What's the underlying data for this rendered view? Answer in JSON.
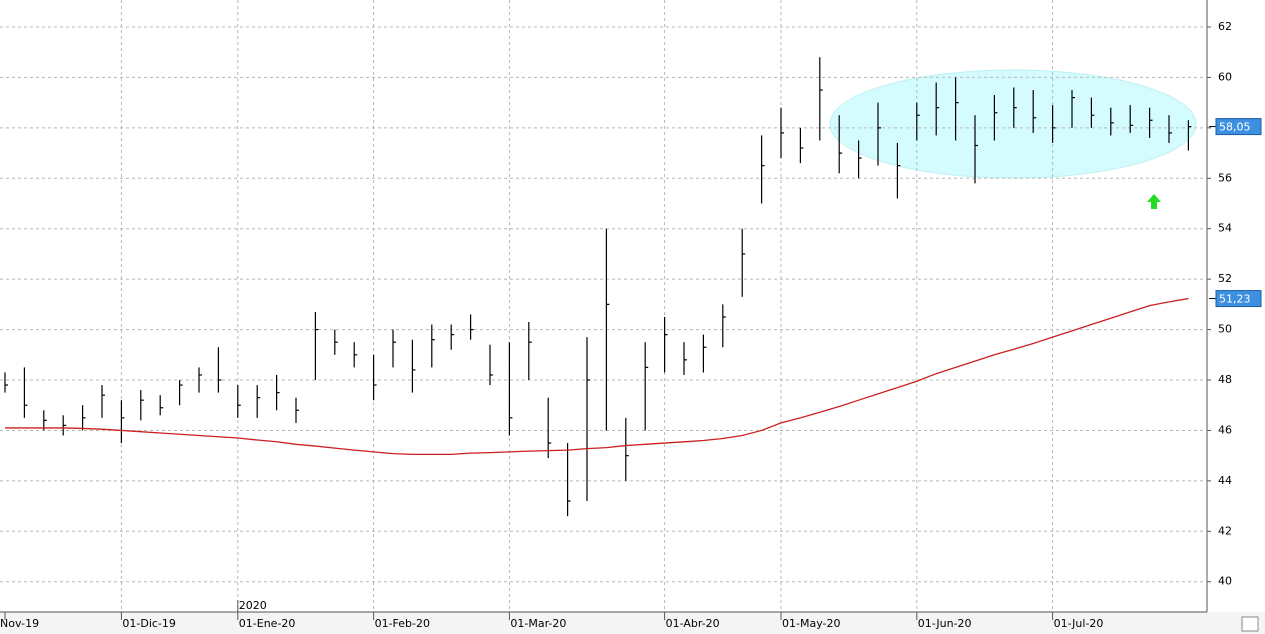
{
  "chart_data": {
    "type": "ohlc",
    "categories": [
      "Nov-19",
      null,
      null,
      null,
      null,
      null,
      "01-Dic-19",
      null,
      null,
      null,
      null,
      null,
      "01-Ene-20",
      null,
      null,
      null,
      null,
      null,
      null,
      "01-Feb-20",
      null,
      null,
      null,
      null,
      null,
      null,
      "01-Mar-20",
      null,
      null,
      null,
      null,
      null,
      null,
      null,
      "01-Abr-20",
      null,
      null,
      null,
      null,
      null,
      "01-May-20",
      null,
      null,
      null,
      null,
      null,
      null,
      "01-Jun-20",
      null,
      null,
      null,
      null,
      null,
      null,
      "01-Jul-20",
      null,
      null,
      null,
      null,
      null,
      null,
      null
    ],
    "year_marker": "2020",
    "ohlc": {
      "color": "#000000",
      "high": [
        48.3,
        48.5,
        46.8,
        46.6,
        47,
        47.8,
        47.2,
        47.6,
        47.4,
        48,
        48.5,
        49.3,
        47.8,
        47.8,
        48.2,
        47.3,
        50.7,
        50,
        49.5,
        49,
        50,
        49.6,
        50.2,
        50.2,
        50.6,
        49.4,
        49.5,
        50.3,
        47.3,
        45.5,
        49.7,
        54,
        46.5,
        49.5,
        50.5,
        49.5,
        49.8,
        51,
        54,
        57.7,
        58.8,
        58,
        60.8,
        58.5,
        57.5,
        59,
        57.4,
        59,
        59.8,
        60,
        58.5,
        59.3,
        59.6,
        59.5,
        58.9,
        59.5,
        59.2,
        58.8,
        58.9,
        58.8,
        58.5,
        58.3
      ],
      "low": [
        47.5,
        46.5,
        46,
        45.8,
        46,
        46.5,
        45.5,
        46.4,
        46.6,
        47,
        47.5,
        47.5,
        46.5,
        46.5,
        46.8,
        46.3,
        48,
        49,
        48.5,
        47.2,
        48.5,
        47.5,
        48.5,
        49.2,
        49.6,
        47.8,
        45.8,
        48,
        44.9,
        42.6,
        43.2,
        46,
        44,
        46,
        48.3,
        48.2,
        48.3,
        49.3,
        51.3,
        55,
        56.8,
        56.6,
        57.5,
        56.2,
        56,
        56.5,
        55.2,
        57.5,
        57.7,
        57.5,
        55.8,
        57.5,
        58,
        57.8,
        57.4,
        58,
        58,
        57.7,
        57.8,
        57.6,
        57.4,
        57.1
      ],
      "close": [
        47.8,
        47,
        46.4,
        46.2,
        46.5,
        47.4,
        46.5,
        47.2,
        46.9,
        47.8,
        48.2,
        48,
        47,
        47.3,
        47.5,
        46.8,
        50,
        49.5,
        49,
        47.8,
        49.5,
        48.4,
        49.6,
        49.8,
        50,
        48.2,
        46.5,
        49.5,
        45.5,
        43.2,
        48,
        51,
        45,
        48.5,
        49.8,
        48.8,
        49.3,
        50.5,
        53,
        56.5,
        57.8,
        57.2,
        59.5,
        57,
        56.8,
        58,
        56.5,
        58.5,
        58.8,
        59,
        57.3,
        58.6,
        58.8,
        58.4,
        58,
        59.2,
        58.5,
        58.2,
        58.1,
        58.3,
        57.8,
        58.05
      ],
      "close_label": "58,05",
      "label_color": "#3d8fe0"
    },
    "moving_average": {
      "color": "#cc1f1f",
      "values": [
        46.1,
        46.1,
        46.1,
        46.1,
        46.08,
        46.05,
        46.0,
        45.95,
        45.9,
        45.85,
        45.8,
        45.75,
        45.7,
        45.62,
        45.55,
        45.45,
        45.38,
        45.3,
        45.22,
        45.15,
        45.08,
        45.05,
        45.05,
        45.05,
        45.1,
        45.12,
        45.15,
        45.18,
        45.2,
        45.22,
        45.28,
        45.32,
        45.4,
        45.45,
        45.5,
        45.55,
        45.6,
        45.68,
        45.8,
        46.0,
        46.3,
        46.5,
        46.72,
        46.95,
        47.2,
        47.45,
        47.7,
        47.95,
        48.25,
        48.5,
        48.75,
        49.0,
        49.22,
        49.45,
        49.7,
        49.95,
        50.2,
        50.45,
        50.7,
        50.95,
        51.1,
        51.23
      ],
      "value_label": "51,23"
    },
    "ylim": [
      38.8,
      63.07
    ],
    "yticks": [
      40,
      42,
      44,
      46,
      48,
      50,
      52,
      54,
      56,
      58,
      60,
      62
    ],
    "grid": true
  }
}
